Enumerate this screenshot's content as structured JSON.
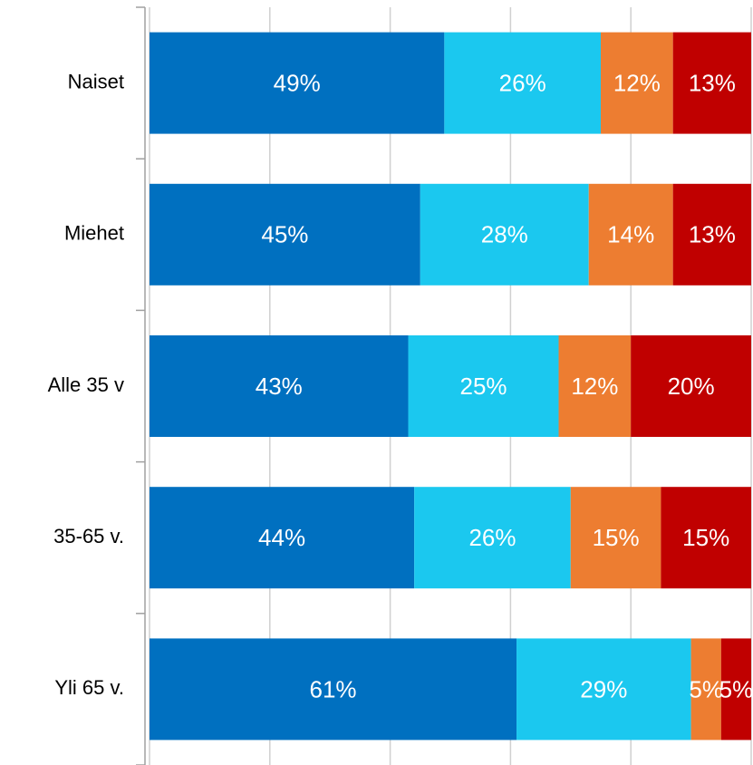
{
  "chart_data": {
    "type": "stacked-barh",
    "categories": [
      "Naiset",
      "Miehet",
      "Alle 35 v",
      "35-65 v.",
      "Yli 65 v."
    ],
    "series": [
      {
        "color": "#0070c0",
        "values": [
          49,
          45,
          43,
          44,
          61
        ],
        "value_labels": [
          "49%",
          "45%",
          "43%",
          "44%",
          "61%"
        ]
      },
      {
        "color": "#1bc8ef",
        "values": [
          26,
          28,
          25,
          26,
          29
        ],
        "value_labels": [
          "26%",
          "28%",
          "25%",
          "26%",
          "29%"
        ]
      },
      {
        "color": "#ed7d31",
        "values": [
          12,
          14,
          12,
          15,
          5
        ],
        "value_labels": [
          "12%",
          "14%",
          "12%",
          "15%",
          "5%"
        ]
      },
      {
        "color": "#c00000",
        "values": [
          13,
          13,
          20,
          15,
          5
        ],
        "value_labels": [
          "13%",
          "13%",
          "20%",
          "15%",
          "5%"
        ]
      }
    ],
    "xlim": [
      0,
      100
    ],
    "xticks": [
      0,
      20,
      40,
      60,
      80,
      100
    ],
    "grid": true
  }
}
